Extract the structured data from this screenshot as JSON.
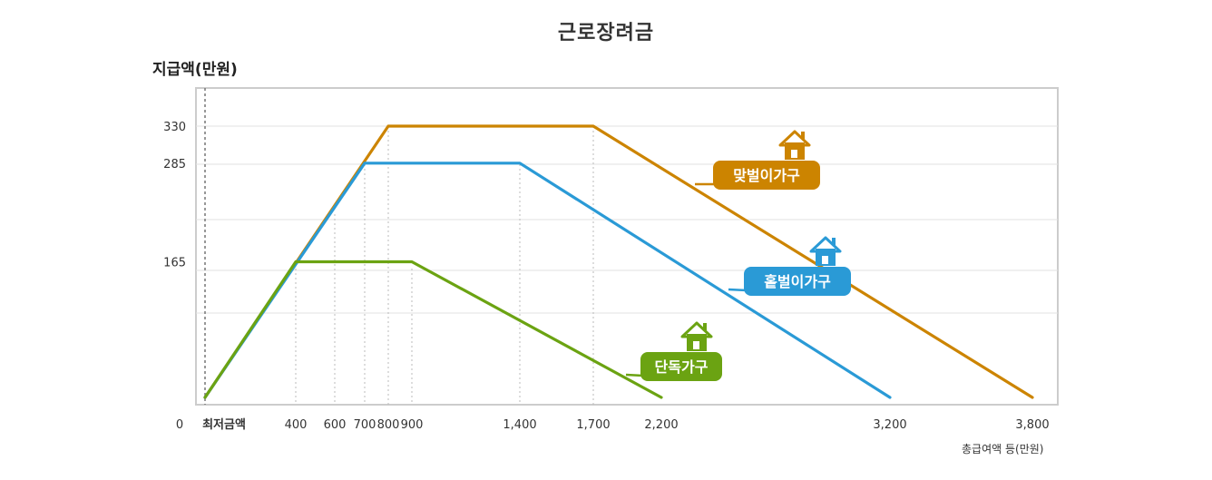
{
  "title": "근로장려금",
  "y_unit_label": "지급액(만원)",
  "x_unit_label": "총급여액 등(만원)",
  "colors": {
    "couple": "#cc8400",
    "single_earner": "#2a9ad6",
    "single": "#6ba312"
  },
  "chart_data": {
    "type": "line",
    "title": "근로장려금",
    "ylabel": "지급액(만원)",
    "xlabel": "총급여액 등(만원)",
    "x_ticks": [
      {
        "value": 0,
        "label": "0"
      },
      {
        "value": 150,
        "label": "최저금액"
      },
      {
        "value": 400,
        "label": "400"
      },
      {
        "value": 600,
        "label": "600"
      },
      {
        "value": 700,
        "label": "700"
      },
      {
        "value": 800,
        "label": "800"
      },
      {
        "value": 900,
        "label": "900"
      },
      {
        "value": 1400,
        "label": "1,400"
      },
      {
        "value": 1700,
        "label": "1,700"
      },
      {
        "value": 2200,
        "label": "2,200"
      },
      {
        "value": 3200,
        "label": "3,200"
      },
      {
        "value": 3800,
        "label": "3,800"
      }
    ],
    "y_ticks": [
      {
        "value": 165,
        "label": "165"
      },
      {
        "value": 285,
        "label": "285"
      },
      {
        "value": 330,
        "label": "330"
      }
    ],
    "xlim": [
      150,
      3800
    ],
    "ylim": [
      0,
      330
    ],
    "grid": true,
    "series": [
      {
        "name": "맞벌이가구",
        "color": "#cc8400",
        "points": [
          [
            150,
            0
          ],
          [
            800,
            330
          ],
          [
            1700,
            330
          ],
          [
            3800,
            0
          ]
        ]
      },
      {
        "name": "홑벌이가구",
        "color": "#2a9ad6",
        "points": [
          [
            150,
            0
          ],
          [
            700,
            285
          ],
          [
            1400,
            285
          ],
          [
            3200,
            0
          ]
        ]
      },
      {
        "name": "단독가구",
        "color": "#6ba312",
        "points": [
          [
            150,
            0
          ],
          [
            400,
            165
          ],
          [
            900,
            165
          ],
          [
            2200,
            0
          ]
        ]
      }
    ]
  }
}
